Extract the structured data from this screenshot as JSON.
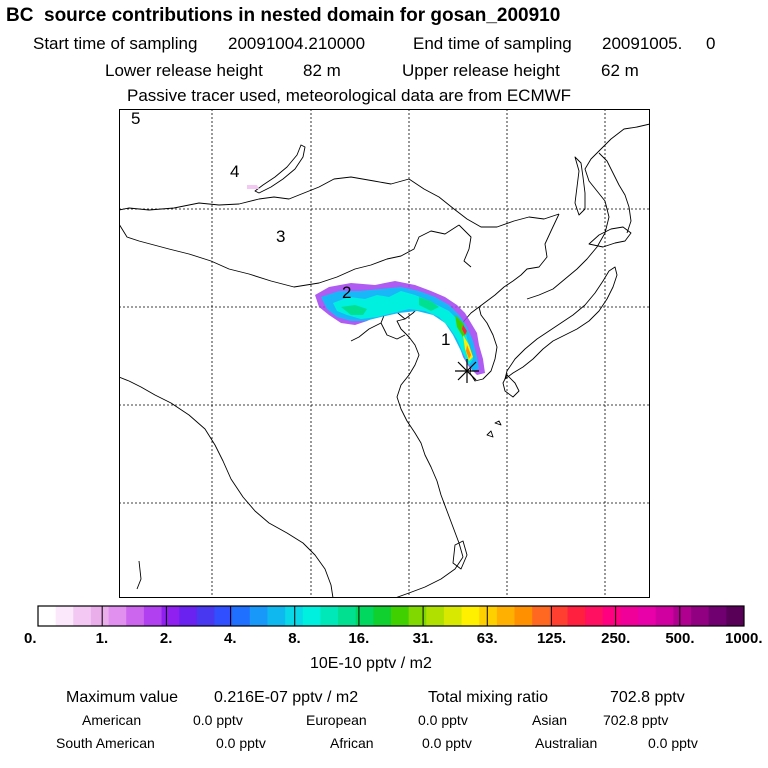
{
  "header": {
    "title": "BC  source contributions in nested domain for gosan_200910",
    "start_label": "Start time of sampling",
    "start_value": "20091004.210000",
    "end_label": "End time of sampling",
    "end_value": "20091005.     0",
    "lower_label": "Lower release height",
    "lower_value": "82 m",
    "upper_label": "Upper release height",
    "upper_value": "62 m",
    "note": "Passive tracer used, meteorological data are from ECMWF"
  },
  "map": {
    "region_labels": [
      "5",
      "4",
      "3",
      "2",
      "1"
    ],
    "receptor_marker": "star"
  },
  "colorbar": {
    "colors": [
      "#ffffff",
      "#fbe8fb",
      "#f3c8f3",
      "#eaaeea",
      "#e190f0",
      "#cc66ee",
      "#b040f0",
      "#9020f0",
      "#6a22f0",
      "#4838f0",
      "#3050ff",
      "#1f70ff",
      "#1898f8",
      "#10b8f0",
      "#08d8e8",
      "#00f0e0",
      "#00e8b8",
      "#00e090",
      "#00d860",
      "#10d030",
      "#40d000",
      "#80d800",
      "#b0e000",
      "#d8e800",
      "#fff000",
      "#ffd000",
      "#ffb000",
      "#ff9000",
      "#ff6820",
      "#ff4030",
      "#ff2040",
      "#ff1060",
      "#ff0080",
      "#f00098",
      "#e800a8",
      "#d000a0",
      "#b00090",
      "#900080",
      "#700070",
      "#580058"
    ],
    "tick_labels": [
      "0.",
      "1.",
      "2.",
      "4.",
      "8.",
      "16.",
      "31.",
      "63.",
      "125.",
      "250.",
      "500.",
      "1000."
    ],
    "units": "10E-10 pptv / m2"
  },
  "stats": {
    "max_label": "Maximum value",
    "max_value": "0.216E-07 pptv / m2",
    "total_label": "Total mixing ratio",
    "total_value": "702.8 pptv",
    "regions": [
      {
        "name": "American",
        "value": "0.0 pptv"
      },
      {
        "name": "European",
        "value": "0.0 pptv"
      },
      {
        "name": "Asian",
        "value": "702.8 pptv"
      },
      {
        "name": "South American",
        "value": "0.0 pptv"
      },
      {
        "name": "African",
        "value": "0.0 pptv"
      },
      {
        "name": "Australian",
        "value": "0.0 pptv"
      }
    ]
  }
}
